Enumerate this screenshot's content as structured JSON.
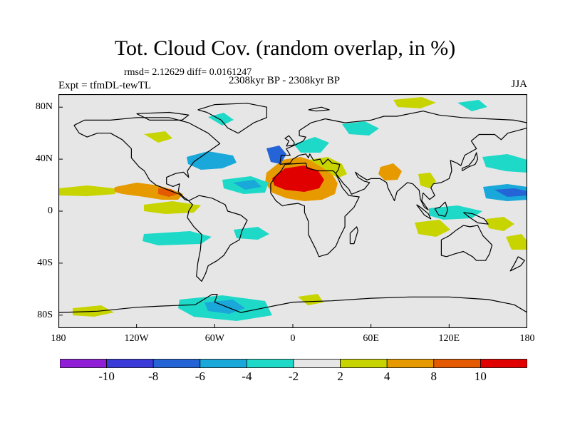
{
  "header": {
    "title": "Tot. Cloud Cov. (random overlap, in %)",
    "stats": "rmsd= 2.12629  diff= 0.0161247",
    "experiment": "Expt = tfmDL-tewTL",
    "period": "2308kyr BP - 2308kyr BP",
    "season": "JJA"
  },
  "map": {
    "projection": "cylindrical-equidistant",
    "lon_range": [
      -180,
      180
    ],
    "lat_range": [
      -90,
      90
    ],
    "background_color": "#e6e6e6",
    "coastline_color": "#000000",
    "lat_ticks": [
      {
        "label": "80N",
        "value": 80
      },
      {
        "label": "40N",
        "value": 40
      },
      {
        "label": "0",
        "value": 0
      },
      {
        "label": "40S",
        "value": -40
      },
      {
        "label": "80S",
        "value": -80
      }
    ],
    "lon_ticks": [
      {
        "label": "180",
        "value": -180
      },
      {
        "label": "120W",
        "value": -120
      },
      {
        "label": "60W",
        "value": -60
      },
      {
        "label": "0",
        "value": 0
      },
      {
        "label": "60E",
        "value": 60
      },
      {
        "label": "120E",
        "value": 120
      },
      {
        "label": "180",
        "value": 180
      }
    ]
  },
  "colorbar": {
    "levels": [
      "-10",
      "-8",
      "-6",
      "-4",
      "-2",
      "2",
      "4",
      "8",
      "10"
    ],
    "colors": [
      "#8f1ed6",
      "#3a3ad9",
      "#2464d6",
      "#19a8d9",
      "#1ed9c8",
      "#e6e6e6",
      "#c8d400",
      "#e69a00",
      "#e35a00",
      "#e00000"
    ]
  }
}
